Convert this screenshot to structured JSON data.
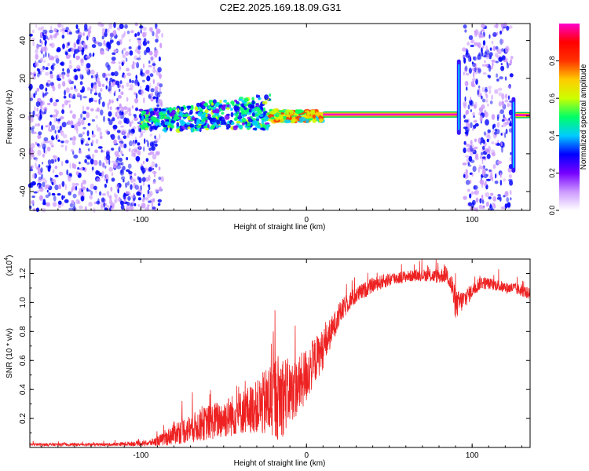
{
  "title": "C2E2.2025.169.18.09.G31",
  "chart_data": [
    {
      "type": "heatmap",
      "xlabel": "Height of straight line (km)",
      "ylabel": "Frequency (Hz)",
      "xlim": [
        -167,
        135
      ],
      "ylim": [
        -50,
        49
      ],
      "x_ticks": [
        -100,
        0,
        100
      ],
      "x_tick_labels": [
        "-100",
        "0",
        "100"
      ],
      "y_ticks": [
        -40,
        -20,
        0,
        20,
        40
      ],
      "y_tick_labels": [
        "-40",
        "-20",
        "0",
        "20",
        "40"
      ],
      "colorbar": {
        "label": "Normalized spectral amplitude",
        "range": [
          0,
          1
        ],
        "ticks": [
          0.0,
          0.2,
          0.4,
          0.6,
          0.8
        ],
        "tick_labels": [
          "0.0",
          "0.2",
          "0.4",
          "0.6",
          "0.8"
        ],
        "colors": [
          "#ffffff",
          "#cc99ff",
          "#7700ff",
          "#0000ff",
          "#00ccff",
          "#00ff66",
          "#ccff00",
          "#ffcc00",
          "#ff3300",
          "#ff0000",
          "#ff00cc"
        ]
      },
      "regions": [
        {
          "kind": "scatter-noise",
          "x_range": [
            -167,
            -87
          ],
          "f_range": [
            -50,
            49
          ],
          "intensity": 0.25
        },
        {
          "kind": "scatter-noise",
          "x_range": [
            95,
            124
          ],
          "f_range": [
            -50,
            49
          ],
          "intensity": 0.25
        },
        {
          "kind": "turbulent-band",
          "x_range": [
            -100,
            -22
          ],
          "f_center": 0,
          "f_halfwidth": 8,
          "intensity": 0.45
        },
        {
          "kind": "transition",
          "x_range": [
            -22,
            10
          ],
          "f_center": 0,
          "f_halfwidth": 3,
          "intensity": 0.7
        },
        {
          "kind": "carrier-line",
          "x_range": [
            10,
            92
          ],
          "f_center": 0.8,
          "intensity": 0.95
        },
        {
          "kind": "vertical-spike",
          "x": 92,
          "f_range": [
            -10,
            30
          ],
          "intensity": 0.6
        },
        {
          "kind": "vertical-spike",
          "x": 125,
          "f_range": [
            -30,
            10
          ],
          "intensity": 0.5
        },
        {
          "kind": "carrier-line",
          "x_range": [
            126,
            135
          ],
          "f_center": 0.5,
          "intensity": 0.95
        }
      ]
    },
    {
      "type": "line",
      "xlabel": "Height of straight line (km)",
      "ylabel": "SNR (10 * v/v)",
      "y_multiplier_label": "(x10",
      "y_multiplier_exp": "4",
      "xlim": [
        -167,
        135
      ],
      "ylim": [
        0,
        1.3
      ],
      "x_ticks": [
        -100,
        0,
        100
      ],
      "x_tick_labels": [
        "-100",
        "0",
        "100"
      ],
      "y_ticks": [
        0.2,
        0.4,
        0.6,
        0.8,
        1.0,
        1.2
      ],
      "y_tick_labels": [
        "0.2",
        "0.4",
        "0.6",
        "0.8",
        "1.0",
        "1.2"
      ],
      "color": "#ee2222",
      "envelope": {
        "x": [
          -167,
          -120,
          -95,
          -85,
          -80,
          -70,
          -60,
          -50,
          -40,
          -30,
          -25,
          -20,
          -15,
          -10,
          -5,
          0,
          5,
          10,
          15,
          20,
          25,
          30,
          40,
          50,
          60,
          70,
          80,
          85,
          88,
          90,
          95,
          100,
          105,
          110,
          115,
          120,
          125,
          130,
          135
        ],
        "mean": [
          0.02,
          0.02,
          0.03,
          0.06,
          0.1,
          0.13,
          0.17,
          0.2,
          0.24,
          0.28,
          0.3,
          0.34,
          0.36,
          0.38,
          0.42,
          0.5,
          0.6,
          0.68,
          0.8,
          0.92,
          1.0,
          1.05,
          1.12,
          1.16,
          1.18,
          1.19,
          1.18,
          1.2,
          1.1,
          0.98,
          1.02,
          1.08,
          1.14,
          1.13,
          1.12,
          1.1,
          1.1,
          1.08,
          1.06
        ],
        "spread": [
          0.01,
          0.01,
          0.02,
          0.05,
          0.08,
          0.1,
          0.12,
          0.14,
          0.15,
          0.18,
          0.24,
          0.3,
          0.3,
          0.22,
          0.2,
          0.2,
          0.16,
          0.14,
          0.1,
          0.08,
          0.07,
          0.06,
          0.05,
          0.05,
          0.04,
          0.04,
          0.05,
          0.06,
          0.1,
          0.1,
          0.07,
          0.05,
          0.05,
          0.04,
          0.04,
          0.04,
          0.04,
          0.04,
          0.04
        ]
      }
    }
  ]
}
